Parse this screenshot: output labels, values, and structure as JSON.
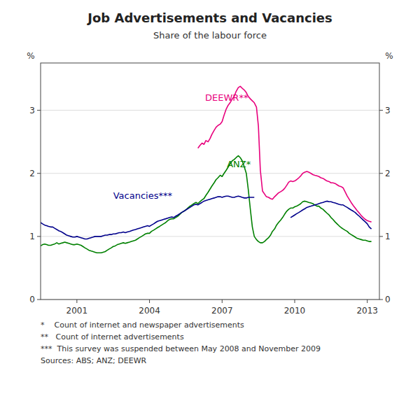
{
  "chart_data": {
    "type": "line",
    "title": "Job Advertisements and Vacancies",
    "subtitle": "Share of the labour force",
    "ylabel": "%",
    "y2label": "%",
    "xlim": [
      1999.5,
      2013.5
    ],
    "xticks": [
      2001,
      2004,
      2007,
      2010,
      2013
    ],
    "ylim": [
      0,
      3.75
    ],
    "yticks": [
      0,
      1,
      2,
      3
    ],
    "y2lim": [
      0,
      3.75
    ],
    "y2ticks": [
      0,
      1,
      2,
      3
    ],
    "grid": true,
    "footnotes": [
      "*    Count of internet and newspaper advertisements",
      "**   Count of internet advertisements",
      "***  This survey was suspended between May 2008 and November 2009",
      "Sources: ABS; ANZ; DEEWR"
    ],
    "annotations": [
      {
        "text": "DEEWR**",
        "x": 2006.3,
        "y": 3.15,
        "color": "#E8007D"
      },
      {
        "text": "ANZ*",
        "x": 2007.2,
        "y": 2.1,
        "color": "#008000"
      },
      {
        "text": "Vacancies***",
        "x": 2002.5,
        "y": 1.6,
        "color": "#00008B"
      }
    ],
    "series": [
      {
        "color": "#E8007D",
        "x": [
          2006.0,
          2006.08,
          2006.17,
          2006.25,
          2006.33,
          2006.42,
          2006.5,
          2006.58,
          2006.67,
          2006.75,
          2006.83,
          2006.92,
          2007.0,
          2007.08,
          2007.17,
          2007.25,
          2007.33,
          2007.42,
          2007.5,
          2007.58,
          2007.67,
          2007.75,
          2007.83,
          2007.92,
          2008.0,
          2008.08,
          2008.17,
          2008.25,
          2008.33,
          2008.42,
          2008.5,
          2008.58,
          2008.67,
          2008.83,
          2008.92,
          2009.0,
          2009.08,
          2009.17,
          2009.25,
          2009.33,
          2009.42,
          2009.5,
          2009.58,
          2009.67,
          2009.75,
          2009.83,
          2009.92,
          2010.0,
          2010.08,
          2010.17,
          2010.25,
          2010.33,
          2010.42,
          2010.5,
          2010.58,
          2010.67,
          2010.75,
          2010.83,
          2010.92,
          2011.0,
          2011.08,
          2011.17,
          2011.25,
          2011.33,
          2011.42,
          2011.5,
          2011.58,
          2011.67,
          2011.75,
          2011.83,
          2011.92,
          2012.0,
          2012.08,
          2012.17,
          2012.25,
          2012.33,
          2012.42,
          2012.5,
          2012.58,
          2012.67,
          2012.75,
          2012.83,
          2012.92,
          2013.0,
          2013.08,
          2013.17
        ],
        "values": [
          2.4,
          2.44,
          2.48,
          2.46,
          2.52,
          2.5,
          2.55,
          2.62,
          2.68,
          2.73,
          2.76,
          2.78,
          2.82,
          2.92,
          3.02,
          3.08,
          3.12,
          3.18,
          3.22,
          3.3,
          3.36,
          3.38,
          3.35,
          3.32,
          3.28,
          3.22,
          3.18,
          3.15,
          3.12,
          3.05,
          2.75,
          2.05,
          1.72,
          1.63,
          1.62,
          1.6,
          1.59,
          1.63,
          1.66,
          1.69,
          1.71,
          1.73,
          1.76,
          1.81,
          1.86,
          1.88,
          1.87,
          1.88,
          1.9,
          1.93,
          1.96,
          2.0,
          2.02,
          2.03,
          2.02,
          2.0,
          1.98,
          1.97,
          1.96,
          1.95,
          1.93,
          1.92,
          1.9,
          1.88,
          1.87,
          1.85,
          1.85,
          1.84,
          1.82,
          1.8,
          1.79,
          1.77,
          1.71,
          1.64,
          1.59,
          1.54,
          1.49,
          1.45,
          1.41,
          1.37,
          1.33,
          1.3,
          1.27,
          1.25,
          1.24,
          1.23
        ]
      },
      {
        "color": "#008000",
        "x": [
          1999.5,
          1999.58,
          1999.67,
          1999.75,
          1999.83,
          1999.92,
          2000.0,
          2000.08,
          2000.17,
          2000.25,
          2000.33,
          2000.42,
          2000.5,
          2000.58,
          2000.67,
          2000.75,
          2000.83,
          2000.92,
          2001.0,
          2001.08,
          2001.17,
          2001.25,
          2001.33,
          2001.42,
          2001.5,
          2001.58,
          2001.67,
          2001.75,
          2001.83,
          2001.92,
          2002.0,
          2002.08,
          2002.17,
          2002.25,
          2002.33,
          2002.42,
          2002.5,
          2002.58,
          2002.67,
          2002.75,
          2002.83,
          2002.92,
          2003.0,
          2003.08,
          2003.17,
          2003.25,
          2003.33,
          2003.42,
          2003.5,
          2003.58,
          2003.67,
          2003.75,
          2003.83,
          2003.92,
          2004.0,
          2004.08,
          2004.17,
          2004.25,
          2004.33,
          2004.42,
          2004.5,
          2004.58,
          2004.67,
          2004.75,
          2004.83,
          2004.92,
          2005.0,
          2005.08,
          2005.17,
          2005.25,
          2005.33,
          2005.42,
          2005.5,
          2005.58,
          2005.67,
          2005.75,
          2005.83,
          2005.92,
          2006.0,
          2006.08,
          2006.17,
          2006.25,
          2006.33,
          2006.42,
          2006.5,
          2006.58,
          2006.67,
          2006.75,
          2006.83,
          2006.92,
          2007.0,
          2007.08,
          2007.17,
          2007.25,
          2007.33,
          2007.42,
          2007.5,
          2007.58,
          2007.67,
          2007.75,
          2007.83,
          2007.92,
          2008.0,
          2008.08,
          2008.17,
          2008.25,
          2008.33,
          2008.42,
          2008.5,
          2008.58,
          2008.67,
          2008.75,
          2008.83,
          2008.92,
          2009.0,
          2009.08,
          2009.17,
          2009.25,
          2009.33,
          2009.42,
          2009.5,
          2009.58,
          2009.67,
          2009.75,
          2009.83,
          2009.92,
          2010.0,
          2010.08,
          2010.17,
          2010.25,
          2010.33,
          2010.42,
          2010.5,
          2010.58,
          2010.67,
          2010.75,
          2010.83,
          2010.92,
          2011.0,
          2011.08,
          2011.17,
          2011.25,
          2011.33,
          2011.42,
          2011.5,
          2011.58,
          2011.67,
          2011.75,
          2011.83,
          2011.92,
          2012.0,
          2012.08,
          2012.17,
          2012.25,
          2012.33,
          2012.42,
          2012.5,
          2012.58,
          2012.67,
          2012.75,
          2012.83,
          2012.92,
          2013.0,
          2013.08,
          2013.17
        ],
        "values": [
          0.85,
          0.87,
          0.88,
          0.87,
          0.86,
          0.86,
          0.87,
          0.88,
          0.9,
          0.88,
          0.89,
          0.9,
          0.91,
          0.9,
          0.89,
          0.88,
          0.87,
          0.87,
          0.88,
          0.87,
          0.86,
          0.84,
          0.82,
          0.8,
          0.78,
          0.77,
          0.76,
          0.75,
          0.74,
          0.74,
          0.74,
          0.75,
          0.76,
          0.78,
          0.8,
          0.82,
          0.84,
          0.85,
          0.87,
          0.88,
          0.89,
          0.9,
          0.89,
          0.9,
          0.91,
          0.92,
          0.93,
          0.94,
          0.96,
          0.98,
          1.0,
          1.02,
          1.04,
          1.05,
          1.05,
          1.08,
          1.1,
          1.12,
          1.14,
          1.16,
          1.18,
          1.2,
          1.22,
          1.25,
          1.27,
          1.28,
          1.28,
          1.3,
          1.32,
          1.35,
          1.38,
          1.4,
          1.42,
          1.45,
          1.48,
          1.5,
          1.52,
          1.54,
          1.52,
          1.55,
          1.58,
          1.6,
          1.65,
          1.7,
          1.75,
          1.8,
          1.85,
          1.9,
          1.93,
          1.97,
          1.95,
          2.0,
          2.05,
          2.1,
          2.15,
          2.2,
          2.22,
          2.25,
          2.28,
          2.25,
          2.2,
          2.1,
          2.0,
          1.75,
          1.42,
          1.15,
          1.0,
          0.95,
          0.92,
          0.9,
          0.9,
          0.92,
          0.95,
          0.98,
          1.02,
          1.08,
          1.12,
          1.18,
          1.22,
          1.26,
          1.3,
          1.35,
          1.4,
          1.43,
          1.45,
          1.45,
          1.47,
          1.48,
          1.5,
          1.52,
          1.55,
          1.56,
          1.55,
          1.54,
          1.53,
          1.52,
          1.5,
          1.48,
          1.48,
          1.45,
          1.43,
          1.4,
          1.37,
          1.34,
          1.3,
          1.27,
          1.23,
          1.2,
          1.17,
          1.14,
          1.12,
          1.1,
          1.08,
          1.05,
          1.03,
          1.01,
          0.99,
          0.97,
          0.96,
          0.95,
          0.94,
          0.94,
          0.93,
          0.92,
          0.92
        ]
      },
      {
        "color": "#00008B",
        "x": [
          1999.5,
          1999.58,
          1999.67,
          1999.75,
          1999.83,
          1999.92,
          2000.0,
          2000.08,
          2000.17,
          2000.25,
          2000.33,
          2000.42,
          2000.5,
          2000.58,
          2000.67,
          2000.75,
          2000.83,
          2000.92,
          2001.0,
          2001.08,
          2001.17,
          2001.25,
          2001.33,
          2001.42,
          2001.5,
          2001.58,
          2001.67,
          2001.75,
          2001.83,
          2001.92,
          2002.0,
          2002.08,
          2002.17,
          2002.25,
          2002.33,
          2002.42,
          2002.5,
          2002.58,
          2002.67,
          2002.75,
          2002.83,
          2002.92,
          2003.0,
          2003.08,
          2003.17,
          2003.25,
          2003.33,
          2003.42,
          2003.5,
          2003.58,
          2003.67,
          2003.75,
          2003.83,
          2003.92,
          2004.0,
          2004.08,
          2004.17,
          2004.25,
          2004.33,
          2004.42,
          2004.5,
          2004.58,
          2004.67,
          2004.75,
          2004.83,
          2004.92,
          2005.0,
          2005.08,
          2005.17,
          2005.25,
          2005.33,
          2005.42,
          2005.5,
          2005.58,
          2005.67,
          2005.75,
          2005.83,
          2005.92,
          2006.0,
          2006.08,
          2006.17,
          2006.25,
          2006.33,
          2006.42,
          2006.5,
          2006.58,
          2006.67,
          2006.75,
          2006.83,
          2006.92,
          2007.0,
          2007.08,
          2007.17,
          2007.25,
          2007.33,
          2007.42,
          2007.5,
          2007.58,
          2007.67,
          2007.75,
          2007.83,
          2007.92,
          2008.0,
          2008.08,
          2008.17,
          2008.25,
          2008.33,
          2008.42,
          2008.5,
          2008.58,
          2008.67,
          2008.75,
          2008.83,
          2008.92,
          2009.0,
          2009.08,
          2009.17,
          2009.25,
          2009.33,
          2009.42,
          2009.5,
          2009.58,
          2009.67,
          2009.75,
          2009.83,
          2009.92,
          2010.0,
          2010.08,
          2010.17,
          2010.25,
          2010.33,
          2010.42,
          2010.5,
          2010.58,
          2010.67,
          2010.75,
          2010.83,
          2010.92,
          2011.0,
          2011.08,
          2011.17,
          2011.25,
          2011.33,
          2011.42,
          2011.5,
          2011.58,
          2011.67,
          2011.75,
          2011.83,
          2011.92,
          2012.0,
          2012.08,
          2012.17,
          2012.25,
          2012.33,
          2012.42,
          2012.5,
          2012.58,
          2012.67,
          2012.75,
          2012.83,
          2012.92,
          2013.0,
          2013.08,
          2013.17
        ],
        "values": [
          1.22,
          1.2,
          1.18,
          1.17,
          1.16,
          1.15,
          1.15,
          1.13,
          1.11,
          1.09,
          1.08,
          1.06,
          1.04,
          1.02,
          1.01,
          1.0,
          0.99,
          0.99,
          1.0,
          0.99,
          0.98,
          0.97,
          0.96,
          0.96,
          0.97,
          0.98,
          0.99,
          1.0,
          1.0,
          1.0,
          1.0,
          1.01,
          1.02,
          1.02,
          1.03,
          1.03,
          1.04,
          1.04,
          1.05,
          1.06,
          1.06,
          1.07,
          1.06,
          1.07,
          1.08,
          1.09,
          1.1,
          1.11,
          1.12,
          1.13,
          1.14,
          1.15,
          1.16,
          1.17,
          1.16,
          1.18,
          1.2,
          1.22,
          1.24,
          1.25,
          1.26,
          1.27,
          1.28,
          1.29,
          1.3,
          1.31,
          1.3,
          1.32,
          1.34,
          1.36,
          1.38,
          1.4,
          1.42,
          1.44,
          1.46,
          1.48,
          1.5,
          1.51,
          1.5,
          1.52,
          1.54,
          1.56,
          1.57,
          1.58,
          1.59,
          1.6,
          1.61,
          1.62,
          1.63,
          1.63,
          1.62,
          1.63,
          1.64,
          1.64,
          1.63,
          1.62,
          1.62,
          1.63,
          1.64,
          1.63,
          1.62,
          1.61,
          1.61,
          1.62,
          1.62,
          1.62,
          1.62,
          null,
          null,
          null,
          null,
          null,
          null,
          null,
          null,
          null,
          null,
          null,
          null,
          null,
          null,
          null,
          null,
          null,
          1.3,
          1.32,
          1.34,
          1.36,
          1.38,
          1.4,
          1.42,
          1.44,
          1.46,
          1.47,
          1.48,
          1.49,
          1.5,
          1.51,
          1.52,
          1.53,
          1.54,
          1.55,
          1.56,
          1.55,
          1.55,
          1.54,
          1.53,
          1.52,
          1.51,
          1.5,
          1.5,
          1.48,
          1.46,
          1.44,
          1.42,
          1.4,
          1.38,
          1.35,
          1.32,
          1.29,
          1.26,
          1.23,
          1.2,
          1.15,
          1.12
        ]
      }
    ]
  }
}
